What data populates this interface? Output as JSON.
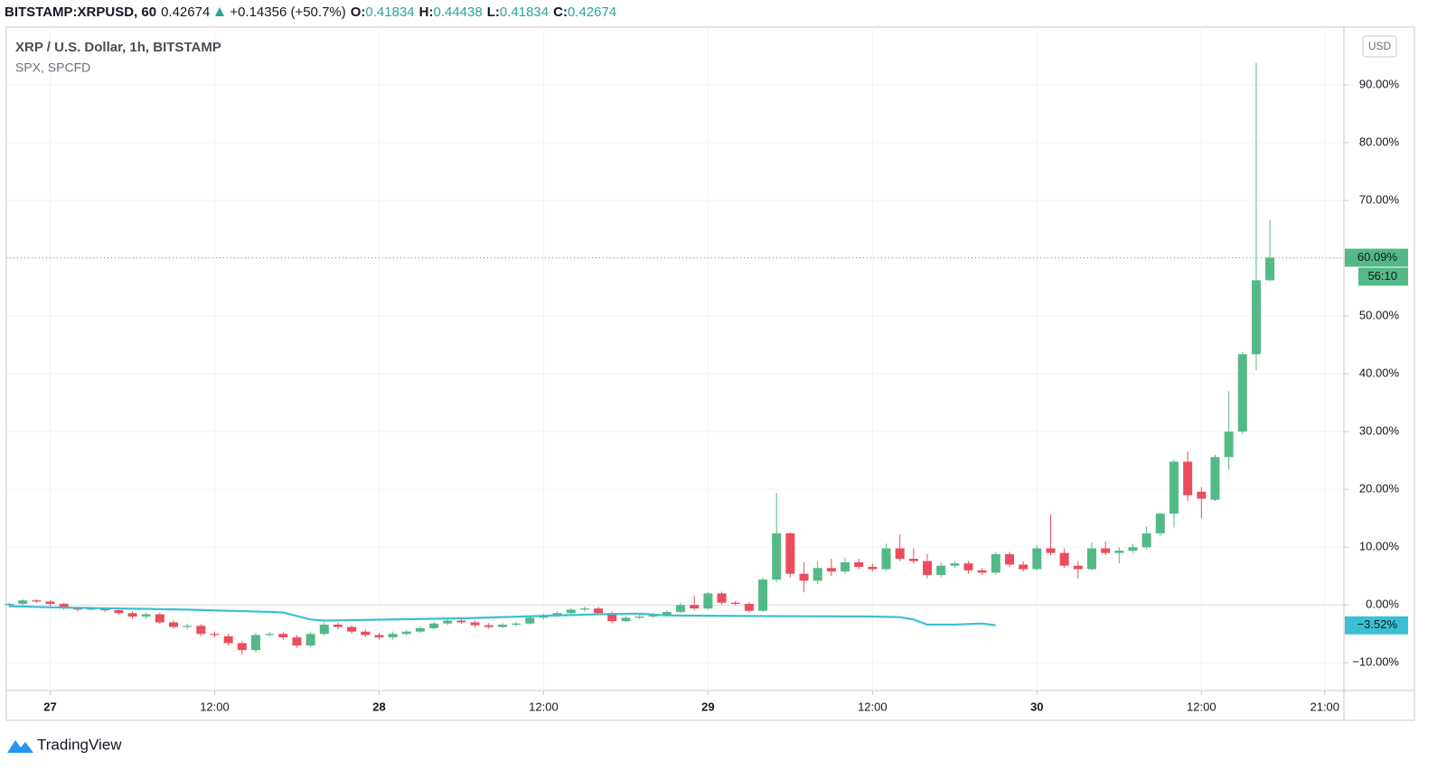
{
  "header": {
    "symbol": "BITSTAMP:XRPUSD, 60",
    "last": "0.42674",
    "change": "+0.14356 (+50.7%)",
    "ohlc": [
      {
        "label": "O:",
        "value": "0.41834"
      },
      {
        "label": "H:",
        "value": "0.44438"
      },
      {
        "label": "L:",
        "value": "0.41834"
      },
      {
        "label": "C:",
        "value": "0.42674"
      }
    ]
  },
  "currency_button": "USD",
  "logo_text": "TradingView",
  "chart_data": {
    "type": "candlestick",
    "name": "XRP / U.S. Dollar, 1h, BITSTAMP",
    "up_color": "#53b987",
    "down_color": "#eb4d5c",
    "x": [
      -3,
      -2,
      -1,
      0,
      1,
      2,
      3,
      4,
      5,
      6,
      7,
      8,
      9,
      10,
      11,
      12,
      13,
      14,
      15,
      16,
      17,
      18,
      19,
      20,
      21,
      22,
      23,
      24,
      25,
      26,
      27,
      28,
      29,
      30,
      31,
      32,
      33,
      34,
      35,
      36,
      37,
      38,
      39,
      40,
      41,
      42,
      43,
      44,
      45,
      46,
      47,
      48,
      49,
      50,
      51,
      52,
      53,
      54,
      55,
      56,
      57,
      58,
      59,
      60,
      61,
      62,
      63,
      64,
      65,
      66,
      67,
      68,
      69,
      70,
      71,
      72,
      73,
      74,
      75,
      76,
      77,
      78,
      79,
      80,
      81,
      82,
      83,
      84,
      85,
      86,
      87,
      88,
      89
    ],
    "open": [
      0,
      0.2,
      0.8,
      0.6,
      0.2,
      -0.6,
      -0.8,
      -0.6,
      -0.9,
      -1.4,
      -2,
      -1.6,
      -3,
      -3.8,
      -3.6,
      -5,
      -5.4,
      -6.6,
      -7.8,
      -5.2,
      -5,
      -5.6,
      -7,
      -5,
      -3.4,
      -3.8,
      -4.6,
      -5.2,
      -5.6,
      -5,
      -4.6,
      -4,
      -3.2,
      -2.7,
      -3,
      -3.5,
      -3.8,
      -3.4,
      -3.2,
      -2.2,
      -1.8,
      -1.4,
      -0.8,
      -0.6,
      -1.4,
      -2.8,
      -2.2,
      -2,
      -1.7,
      -1.2,
      0,
      -0.6,
      2,
      0.4,
      0.2,
      -1,
      4.4,
      12.4,
      5.4,
      4.2,
      6.4,
      5.8,
      7.4,
      6.6,
      6.2,
      9.8,
      8,
      7.6,
      5.2,
      6.8,
      7.2,
      6,
      5.6,
      8.8,
      7,
      6.2,
      9.8,
      9,
      6.8,
      6.2,
      9.8,
      9,
      9.4,
      10,
      12.4,
      15.8,
      24.8,
      19.6,
      18.2,
      25.6,
      30,
      43.4,
      56.2
    ],
    "high": [
      0.4,
      1,
      1,
      0.8,
      0.4,
      -0.3,
      -0.3,
      -0.4,
      -0.6,
      -1.1,
      -1.3,
      -1.3,
      -2.7,
      -3.2,
      -3.3,
      -4.6,
      -5,
      -6.2,
      -4.8,
      -4.6,
      -4.7,
      -5.2,
      -4.6,
      -3,
      -3,
      -3.5,
      -4.2,
      -4.8,
      -4.6,
      -4.3,
      -3.7,
      -2.9,
      -2.4,
      -2.4,
      -2.7,
      -3.1,
      -3.1,
      -2.9,
      -1.9,
      -1.5,
      -1.1,
      -0.5,
      -0.3,
      -0.3,
      -1.1,
      -1.9,
      -1.7,
      -1.4,
      -0.9,
      0.4,
      1.6,
      2.3,
      2.3,
      0.7,
      0.5,
      4.8,
      19.4,
      12.6,
      7.4,
      7.6,
      8,
      8.2,
      8,
      7.2,
      10.6,
      12.2,
      9.8,
      8.8,
      7.4,
      7.6,
      7.6,
      6.4,
      9.2,
      9.2,
      7.6,
      10.4,
      15.6,
      9.8,
      7.6,
      10.8,
      11,
      10,
      10.6,
      13.6,
      16,
      25.2,
      26.6,
      20.4,
      26,
      37,
      43.8,
      93.8,
      66.6
    ],
    "low": [
      -0.2,
      0,
      0.4,
      -0.2,
      -0.8,
      -1.1,
      -1,
      -1.2,
      -1.7,
      -2.3,
      -2.4,
      -3.3,
      -4.1,
      -4.2,
      -5.4,
      -5.6,
      -7,
      -8.6,
      -8.2,
      -5.5,
      -6,
      -7.4,
      -7.3,
      -5.3,
      -4.2,
      -5,
      -5.6,
      -6,
      -6,
      -5.3,
      -4.9,
      -4.2,
      -3.5,
      -3.3,
      -3.9,
      -4.1,
      -4,
      -3.7,
      -3.4,
      -2.5,
      -2.1,
      -1.7,
      -1.1,
      -1.7,
      -3.2,
      -3,
      -2.4,
      -2.2,
      -1.9,
      -1.4,
      -0.9,
      -0.8,
      0.1,
      -0.1,
      -1.3,
      -1.2,
      4,
      4.8,
      2.2,
      3.6,
      5,
      5.4,
      6.2,
      5.8,
      6,
      7.6,
      7.2,
      4.6,
      4.8,
      6.4,
      5.4,
      5.2,
      5.2,
      6.6,
      5.8,
      6,
      8.6,
      6.4,
      4.6,
      6,
      8.6,
      7.2,
      9,
      9.6,
      12,
      13.4,
      18,
      15,
      18,
      23.4,
      29.6,
      40.6,
      56
    ],
    "close": [
      0.2,
      0.8,
      0.6,
      0.2,
      -0.6,
      -0.8,
      -0.6,
      -0.9,
      -1.4,
      -2,
      -1.6,
      -3,
      -3.8,
      -3.6,
      -5,
      -5.2,
      -6.6,
      -7.8,
      -5.2,
      -5,
      -5.6,
      -7,
      -5,
      -3.4,
      -3.8,
      -4.6,
      -5.2,
      -5.6,
      -5,
      -4.6,
      -4,
      -3.2,
      -2.7,
      -3,
      -3.5,
      -3.8,
      -3.4,
      -3.2,
      -2.2,
      -1.8,
      -1.4,
      -0.8,
      -0.6,
      -1.4,
      -2.8,
      -2.2,
      -2,
      -1.7,
      -1.2,
      0,
      -0.6,
      2,
      0.4,
      0.2,
      -1,
      4.4,
      12.4,
      5.4,
      4.2,
      6.4,
      5.8,
      7.4,
      6.6,
      6.2,
      9.8,
      8,
      7.6,
      5.2,
      6.8,
      7.2,
      6,
      5.6,
      8.8,
      7,
      6.2,
      9.8,
      9,
      6.8,
      6.2,
      9.8,
      9,
      9.4,
      10,
      12.4,
      15.8,
      24.8,
      19,
      18.4,
      25.6,
      30,
      43.4,
      56.2,
      60.09
    ],
    "last_close_label": "60.09%",
    "countdown": "56:10",
    "spx": {
      "name": "SPX, SPCFD",
      "color": "#3bbfd3",
      "x": [
        -3,
        0,
        10,
        16,
        17,
        19,
        20,
        30,
        40,
        43,
        45,
        50,
        60,
        62,
        63,
        64,
        66,
        68,
        69
      ],
      "values": [
        -0.2,
        -0.4,
        -0.8,
        -1.2,
        -1.3,
        -2.5,
        -2.7,
        -2.3,
        -1.6,
        -1.5,
        -1.8,
        -1.9,
        -2,
        -2.1,
        -2.5,
        -3.4,
        -3.4,
        -3.2,
        -3.52
      ],
      "last_label": "−3.52%"
    },
    "xlim": [
      -3.2,
      94.4
    ],
    "xticks": [
      {
        "value": 0,
        "label": "27"
      },
      {
        "value": 12,
        "label": "12:00"
      },
      {
        "value": 24,
        "label": "28"
      },
      {
        "value": 36,
        "label": "12:00"
      },
      {
        "value": 48,
        "label": "29"
      },
      {
        "value": 60,
        "label": "12:00"
      },
      {
        "value": 72,
        "label": "30"
      },
      {
        "value": 84,
        "label": "12:00"
      },
      {
        "value": 93,
        "label": "21:00"
      }
    ],
    "ylim": [
      -14.8,
      100
    ],
    "yticks": [
      {
        "value": -10,
        "label": "−10.00%"
      },
      {
        "value": 0,
        "label": "0.00%"
      },
      {
        "value": 10,
        "label": "10.00%"
      },
      {
        "value": 20,
        "label": "20.00%"
      },
      {
        "value": 30,
        "label": "30.00%"
      },
      {
        "value": 40,
        "label": "40.00%"
      },
      {
        "value": 50,
        "label": "50.00%"
      },
      {
        "value": 60,
        "label": "60.00%"
      },
      {
        "value": 70,
        "label": "70.00%"
      },
      {
        "value": 80,
        "label": "80.00%"
      },
      {
        "value": 90,
        "label": "90.00%"
      }
    ],
    "grid": true
  }
}
